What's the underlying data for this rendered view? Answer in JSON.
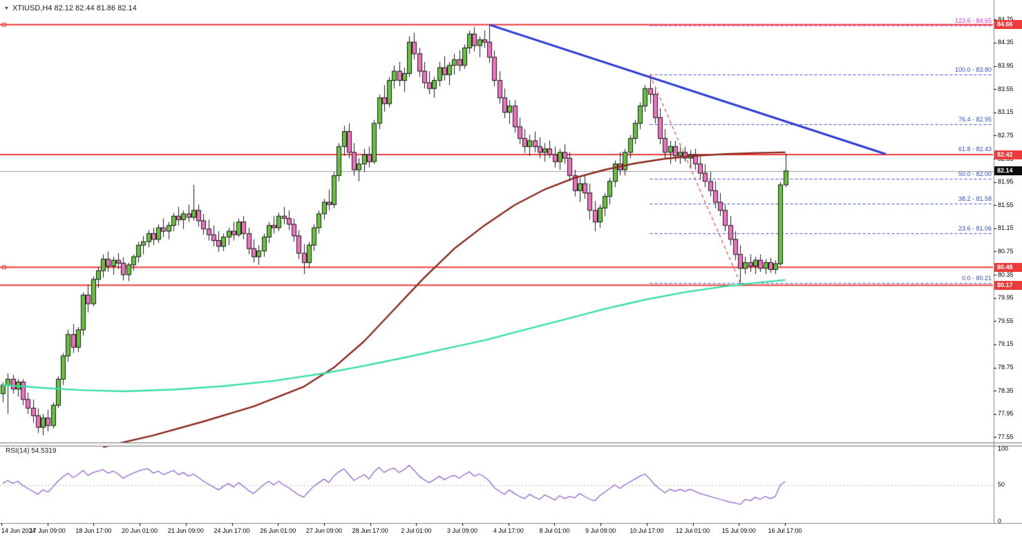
{
  "header": {
    "dropdown_icon": "▼",
    "symbol_ohlc": "XTIUSD,H4  82.12 82.44 81.86 82.14"
  },
  "colors": {
    "bull": "#66c23d",
    "bear": "#ef6fc0",
    "candle_border": "#1a1a1a",
    "wick": "#1a1a1a",
    "red_line": "#ec3b3b",
    "trend_blue": "#2b3bd7",
    "fib_blue": "#3a4fd0",
    "fib_magenta": "#e23ce2",
    "retrace_red": "#e04545",
    "ma_slow": "#8b2a1e",
    "ma_fast": "#37dfa7",
    "rsi_line": "#9166cf",
    "current_price_line": "#9a9a9a",
    "badge_black": "#0d0d0d",
    "frame_gray": "#848484"
  },
  "price_axis": {
    "ticks": [
      "84.75",
      "84.35",
      "83.95",
      "83.55",
      "83.15",
      "82.75",
      "82.35",
      "81.95",
      "81.55",
      "81.15",
      "80.75",
      "80.35",
      "79.95",
      "79.55",
      "79.15",
      "78.75",
      "78.35",
      "77.95",
      "77.55"
    ]
  },
  "time_axis": {
    "labels": [
      "14 Jun 2024",
      "17 Jun 09:00",
      "18 Jun 17:00",
      "20 Jun 01:00",
      "21 Jun 09:00",
      "24 Jun 17:00",
      "26 Jun 01:00",
      "27 Jun 09:00",
      "28 Jun 17:00",
      "2 Jul 01:00",
      "3 Jul 09:00",
      "4 Jul 17:00",
      "8 Jul 01:00",
      "9 Jul 09:00",
      "10 Jul 17:00",
      "12 Jul 01:00",
      "15 Jul 09:00",
      "16 Jul 17:00"
    ]
  },
  "hlines": [
    {
      "price": 84.66,
      "anchor_square": true
    },
    {
      "price": 82.42,
      "anchor_square": false
    },
    {
      "price": 80.48,
      "anchor_square": true
    },
    {
      "price": 80.17,
      "anchor_square": false
    }
  ],
  "badges": [
    {
      "text": "84.66",
      "price": 84.66,
      "bg": "#ec3b3b"
    },
    {
      "text": "82.42",
      "price": 82.42,
      "bg": "#ec3b3b"
    },
    {
      "text": "82.14",
      "price": 82.14,
      "bg": "#0d0d0d"
    },
    {
      "text": "80.48",
      "price": 80.48,
      "bg": "#ec3b3b"
    },
    {
      "text": "80.17",
      "price": 80.17,
      "bg": "#ec3b3b"
    }
  ],
  "fibonacci": {
    "start_bar": 129,
    "end_bar": 147,
    "levels": [
      {
        "label": "123.6 - 84.65",
        "value": 123.6,
        "price": 84.65,
        "color": "#e23ce2"
      },
      {
        "label": "100.0 - 83.80",
        "value": 100.0,
        "price": 83.8,
        "color": "#3a4fd0"
      },
      {
        "label": "76.4 - 82.95",
        "value": 76.4,
        "price": 82.95,
        "color": "#3a4fd0"
      },
      {
        "label": "61.8 - 82.43",
        "value": 61.8,
        "price": 82.43,
        "color": "#3a4fd0"
      },
      {
        "label": "50.0 - 82.00",
        "value": 50.0,
        "price": 82.0,
        "color": "#3a4fd0"
      },
      {
        "label": "38.2 - 81.58",
        "value": 38.2,
        "price": 81.58,
        "color": "#3a4fd0"
      },
      {
        "label": "23.6 - 81.06",
        "value": 23.6,
        "price": 81.06,
        "color": "#3a4fd0"
      },
      {
        "label": "0.0 - 80.21",
        "value": 0.0,
        "price": 80.21,
        "color": "#3a4fd0"
      }
    ]
  },
  "trendline": {
    "start_bar": 97,
    "start_price": 84.66,
    "end_bar_offset": 79,
    "end_price": 82.43
  },
  "retracement_line": {
    "from_price": 83.8,
    "to_price": 80.21
  },
  "rsi_panel": {
    "label": "RSI(14) 54.5319",
    "period": 14,
    "current_value": 54.5319,
    "scale": [
      "100",
      "50",
      "0"
    ],
    "mid_level": 50,
    "values": [
      52,
      56,
      52,
      55,
      49,
      45,
      41,
      37,
      43,
      40,
      47,
      55,
      61,
      66,
      60,
      64,
      70,
      63,
      67,
      69,
      71,
      66,
      69,
      65,
      59,
      63,
      66,
      69,
      71,
      72,
      66,
      69,
      64,
      67,
      70,
      64,
      67,
      62,
      65,
      60,
      55,
      51,
      47,
      43,
      48,
      52,
      47,
      53,
      48,
      42,
      38,
      44,
      50,
      55,
      50,
      55,
      50,
      46,
      41,
      36,
      33,
      41,
      48,
      53,
      58,
      53,
      62,
      68,
      72,
      64,
      56,
      60,
      64,
      58,
      68,
      74,
      67,
      71,
      73,
      67,
      71,
      77,
      70,
      62,
      57,
      53,
      57,
      62,
      57,
      61,
      63,
      59,
      64,
      68,
      62,
      65,
      61,
      55,
      46,
      41,
      37,
      43,
      38,
      34,
      31,
      37,
      33,
      30,
      36,
      33,
      29,
      35,
      31,
      34,
      32,
      38,
      34,
      30,
      28,
      35,
      40,
      45,
      50,
      45,
      50,
      54,
      58,
      62,
      65,
      58,
      50,
      44,
      39,
      44,
      41,
      44,
      41,
      44,
      41,
      38,
      36,
      34,
      32,
      30,
      28,
      26,
      25,
      23,
      30,
      28,
      33,
      30,
      34,
      31,
      34,
      50,
      54.5
    ]
  },
  "chart_data": {
    "type": "candlestick",
    "symbol": "XTIUSD",
    "timeframe": "H4",
    "current_bar": {
      "open": 82.12,
      "high": 82.44,
      "low": 81.86,
      "close": 82.14
    },
    "current_price": 82.14,
    "ylim": [
      77.46,
      84.92
    ],
    "candles": [
      [
        78.3,
        78.5,
        78.15,
        78.45
      ],
      [
        78.45,
        78.65,
        77.95,
        78.55
      ],
      [
        78.55,
        78.62,
        78.3,
        78.38
      ],
      [
        78.38,
        78.55,
        78.25,
        78.5
      ],
      [
        78.5,
        78.55,
        78.1,
        78.2
      ],
      [
        78.2,
        78.32,
        77.95,
        78.05
      ],
      [
        78.05,
        78.2,
        77.8,
        77.92
      ],
      [
        77.92,
        78.05,
        77.62,
        77.72
      ],
      [
        77.72,
        77.95,
        77.58,
        77.88
      ],
      [
        77.88,
        78.02,
        77.65,
        77.75
      ],
      [
        77.75,
        78.15,
        77.7,
        78.1
      ],
      [
        78.1,
        78.6,
        78.05,
        78.55
      ],
      [
        78.55,
        79.0,
        78.45,
        78.95
      ],
      [
        78.95,
        79.4,
        78.85,
        79.32
      ],
      [
        79.32,
        79.5,
        79.0,
        79.1
      ],
      [
        79.1,
        79.45,
        79.02,
        79.4
      ],
      [
        79.4,
        80.05,
        79.3,
        80.0
      ],
      [
        80.0,
        80.18,
        79.7,
        79.85
      ],
      [
        79.85,
        80.32,
        79.8,
        80.27
      ],
      [
        80.27,
        80.48,
        80.12,
        80.42
      ],
      [
        80.42,
        80.7,
        80.3,
        80.62
      ],
      [
        80.62,
        80.75,
        80.4,
        80.5
      ],
      [
        80.5,
        80.66,
        80.35,
        80.6
      ],
      [
        80.6,
        80.72,
        80.45,
        80.55
      ],
      [
        80.55,
        80.65,
        80.25,
        80.35
      ],
      [
        80.35,
        80.56,
        80.24,
        80.52
      ],
      [
        80.52,
        80.7,
        80.42,
        80.66
      ],
      [
        80.66,
        80.92,
        80.56,
        80.86
      ],
      [
        80.86,
        81.02,
        80.7,
        80.92
      ],
      [
        80.92,
        81.12,
        80.82,
        81.06
      ],
      [
        81.06,
        81.16,
        80.86,
        80.96
      ],
      [
        80.96,
        81.22,
        80.9,
        81.16
      ],
      [
        81.16,
        81.32,
        81.0,
        81.1
      ],
      [
        81.1,
        81.26,
        80.96,
        81.2
      ],
      [
        81.2,
        81.42,
        81.1,
        81.36
      ],
      [
        81.36,
        81.52,
        81.2,
        81.3
      ],
      [
        81.3,
        81.46,
        81.14,
        81.4
      ],
      [
        81.4,
        81.56,
        81.26,
        81.34
      ],
      [
        81.34,
        81.9,
        81.28,
        81.46
      ],
      [
        81.46,
        81.56,
        81.18,
        81.28
      ],
      [
        81.28,
        81.4,
        81.04,
        81.14
      ],
      [
        81.14,
        81.3,
        80.94,
        81.04
      ],
      [
        81.04,
        81.2,
        80.84,
        80.94
      ],
      [
        80.94,
        81.1,
        80.74,
        80.84
      ],
      [
        80.84,
        81.06,
        80.76,
        81.0
      ],
      [
        81.0,
        81.16,
        80.86,
        81.1
      ],
      [
        81.1,
        81.26,
        80.94,
        81.04
      ],
      [
        81.04,
        81.32,
        81.0,
        81.26
      ],
      [
        81.26,
        81.36,
        80.96,
        81.06
      ],
      [
        81.06,
        81.16,
        80.7,
        80.8
      ],
      [
        80.8,
        80.96,
        80.56,
        80.66
      ],
      [
        80.66,
        80.86,
        80.52,
        80.76
      ],
      [
        80.76,
        81.06,
        80.66,
        81.0
      ],
      [
        81.0,
        81.26,
        80.9,
        81.2
      ],
      [
        81.2,
        81.36,
        81.06,
        81.16
      ],
      [
        81.16,
        81.42,
        81.1,
        81.36
      ],
      [
        81.36,
        81.52,
        81.22,
        81.32
      ],
      [
        81.32,
        81.46,
        81.12,
        81.22
      ],
      [
        81.22,
        81.32,
        80.92,
        81.02
      ],
      [
        81.02,
        81.12,
        80.62,
        80.72
      ],
      [
        80.72,
        80.88,
        80.36,
        80.56
      ],
      [
        80.56,
        80.92,
        80.46,
        80.86
      ],
      [
        80.86,
        81.22,
        80.76,
        81.16
      ],
      [
        81.16,
        81.46,
        81.06,
        81.4
      ],
      [
        81.4,
        81.66,
        81.3,
        81.6
      ],
      [
        81.6,
        81.82,
        81.46,
        81.56
      ],
      [
        81.56,
        82.12,
        81.5,
        82.06
      ],
      [
        82.06,
        82.62,
        81.96,
        82.56
      ],
      [
        82.56,
        82.92,
        82.4,
        82.82
      ],
      [
        82.82,
        82.96,
        82.36,
        82.46
      ],
      [
        82.46,
        82.62,
        82.06,
        82.16
      ],
      [
        82.16,
        82.36,
        81.96,
        82.26
      ],
      [
        82.26,
        82.52,
        82.12,
        82.42
      ],
      [
        82.42,
        82.56,
        82.2,
        82.3
      ],
      [
        82.3,
        83.02,
        82.26,
        82.96
      ],
      [
        82.96,
        83.46,
        82.86,
        83.4
      ],
      [
        83.4,
        83.62,
        83.16,
        83.3
      ],
      [
        83.3,
        83.76,
        83.24,
        83.7
      ],
      [
        83.7,
        83.96,
        83.56,
        83.86
      ],
      [
        83.86,
        84.02,
        83.6,
        83.7
      ],
      [
        83.7,
        83.92,
        83.5,
        83.82
      ],
      [
        83.82,
        84.46,
        83.76,
        84.36
      ],
      [
        84.36,
        84.52,
        84.06,
        84.16
      ],
      [
        84.16,
        84.26,
        83.76,
        83.86
      ],
      [
        83.86,
        84.02,
        83.56,
        83.66
      ],
      [
        83.66,
        83.86,
        83.46,
        83.56
      ],
      [
        83.56,
        83.76,
        83.4,
        83.7
      ],
      [
        83.7,
        84.02,
        83.6,
        83.92
      ],
      [
        83.92,
        84.12,
        83.7,
        83.8
      ],
      [
        83.8,
        84.02,
        83.62,
        83.96
      ],
      [
        83.96,
        84.16,
        83.8,
        84.06
      ],
      [
        84.06,
        84.22,
        83.86,
        83.96
      ],
      [
        83.96,
        84.32,
        83.9,
        84.26
      ],
      [
        84.26,
        84.56,
        84.16,
        84.5
      ],
      [
        84.5,
        84.62,
        84.2,
        84.3
      ],
      [
        84.3,
        84.46,
        84.1,
        84.4
      ],
      [
        84.4,
        84.56,
        84.26,
        84.36
      ],
      [
        84.36,
        84.65,
        84.0,
        84.1
      ],
      [
        84.1,
        84.22,
        83.6,
        83.7
      ],
      [
        83.7,
        83.86,
        83.3,
        83.4
      ],
      [
        83.4,
        83.56,
        83.05,
        83.15
      ],
      [
        83.15,
        83.36,
        82.95,
        83.26
      ],
      [
        83.26,
        83.36,
        82.8,
        82.9
      ],
      [
        82.9,
        83.06,
        82.6,
        82.7
      ],
      [
        82.7,
        82.86,
        82.45,
        82.56
      ],
      [
        82.56,
        82.76,
        82.4,
        82.66
      ],
      [
        82.66,
        82.82,
        82.46,
        82.56
      ],
      [
        82.56,
        82.72,
        82.36,
        82.46
      ],
      [
        82.46,
        82.62,
        82.3,
        82.52
      ],
      [
        82.52,
        82.66,
        82.36,
        82.42
      ],
      [
        82.42,
        82.56,
        82.2,
        82.3
      ],
      [
        82.3,
        82.52,
        82.16,
        82.46
      ],
      [
        82.46,
        82.6,
        82.26,
        82.36
      ],
      [
        82.36,
        82.46,
        81.96,
        82.06
      ],
      [
        82.06,
        82.16,
        81.7,
        81.8
      ],
      [
        81.8,
        82.02,
        81.6,
        81.92
      ],
      [
        81.92,
        82.06,
        81.66,
        81.76
      ],
      [
        81.76,
        81.92,
        81.3,
        81.46
      ],
      [
        81.46,
        81.62,
        81.1,
        81.26
      ],
      [
        81.26,
        81.56,
        81.16,
        81.5
      ],
      [
        81.5,
        81.76,
        81.36,
        81.7
      ],
      [
        81.7,
        82.02,
        81.56,
        81.96
      ],
      [
        81.96,
        82.32,
        81.86,
        82.26
      ],
      [
        82.26,
        82.46,
        82.06,
        82.16
      ],
      [
        82.16,
        82.52,
        82.06,
        82.46
      ],
      [
        82.46,
        82.76,
        82.36,
        82.7
      ],
      [
        82.7,
        83.02,
        82.6,
        82.96
      ],
      [
        82.96,
        83.32,
        82.86,
        83.26
      ],
      [
        83.26,
        83.62,
        83.16,
        83.56
      ],
      [
        83.56,
        83.8,
        83.3,
        83.46
      ],
      [
        83.46,
        83.56,
        82.96,
        83.06
      ],
      [
        83.06,
        83.22,
        82.6,
        82.7
      ],
      [
        82.7,
        82.86,
        82.36,
        82.46
      ],
      [
        82.46,
        82.66,
        82.26,
        82.56
      ],
      [
        82.56,
        82.66,
        82.3,
        82.4
      ],
      [
        82.4,
        82.56,
        82.26,
        82.46
      ],
      [
        82.46,
        82.56,
        82.3,
        82.36
      ],
      [
        82.36,
        82.5,
        82.2,
        82.42
      ],
      [
        82.42,
        82.52,
        82.16,
        82.26
      ],
      [
        82.26,
        82.42,
        82.0,
        82.1
      ],
      [
        82.1,
        82.26,
        81.86,
        81.96
      ],
      [
        81.96,
        82.12,
        81.7,
        81.8
      ],
      [
        81.8,
        81.96,
        81.5,
        81.6
      ],
      [
        81.6,
        81.76,
        81.36,
        81.46
      ],
      [
        81.46,
        81.56,
        81.1,
        81.2
      ],
      [
        81.2,
        81.36,
        80.86,
        80.96
      ],
      [
        80.96,
        81.1,
        80.6,
        80.7
      ],
      [
        80.7,
        80.86,
        80.2,
        80.46
      ],
      [
        80.46,
        80.66,
        80.36,
        80.56
      ],
      [
        80.56,
        80.7,
        80.4,
        80.5
      ],
      [
        80.5,
        80.66,
        80.36,
        80.6
      ],
      [
        80.6,
        80.7,
        80.4,
        80.46
      ],
      [
        80.46,
        80.62,
        80.36,
        80.56
      ],
      [
        80.56,
        80.64,
        80.38,
        80.44
      ],
      [
        80.44,
        80.6,
        80.36,
        80.54
      ],
      [
        80.54,
        81.95,
        80.5,
        81.9
      ],
      [
        81.9,
        82.44,
        81.86,
        82.14
      ]
    ],
    "moving_averages": [
      {
        "name": "ma-slow-darkred",
        "points": [
          [
            20,
            77.38
          ],
          [
            30,
            77.58
          ],
          [
            40,
            77.82
          ],
          [
            50,
            78.08
          ],
          [
            60,
            78.42
          ],
          [
            66,
            78.75
          ],
          [
            72,
            79.2
          ],
          [
            78,
            79.75
          ],
          [
            84,
            80.3
          ],
          [
            90,
            80.8
          ],
          [
            96,
            81.2
          ],
          [
            102,
            81.55
          ],
          [
            108,
            81.82
          ],
          [
            114,
            82.02
          ],
          [
            120,
            82.16
          ],
          [
            126,
            82.27
          ],
          [
            132,
            82.35
          ],
          [
            138,
            82.4
          ],
          [
            144,
            82.43
          ],
          [
            150,
            82.45
          ],
          [
            156,
            82.46
          ]
        ]
      },
      {
        "name": "ma-fast-turquoise",
        "points": [
          [
            0,
            78.45
          ],
          [
            8,
            78.4
          ],
          [
            16,
            78.36
          ],
          [
            24,
            78.34
          ],
          [
            34,
            78.37
          ],
          [
            44,
            78.43
          ],
          [
            54,
            78.52
          ],
          [
            64,
            78.65
          ],
          [
            72,
            78.78
          ],
          [
            80,
            78.92
          ],
          [
            88,
            79.07
          ],
          [
            96,
            79.22
          ],
          [
            104,
            79.4
          ],
          [
            112,
            79.58
          ],
          [
            120,
            79.76
          ],
          [
            128,
            79.92
          ],
          [
            136,
            80.05
          ],
          [
            144,
            80.15
          ],
          [
            150,
            80.21
          ],
          [
            156,
            80.26
          ]
        ]
      }
    ]
  }
}
